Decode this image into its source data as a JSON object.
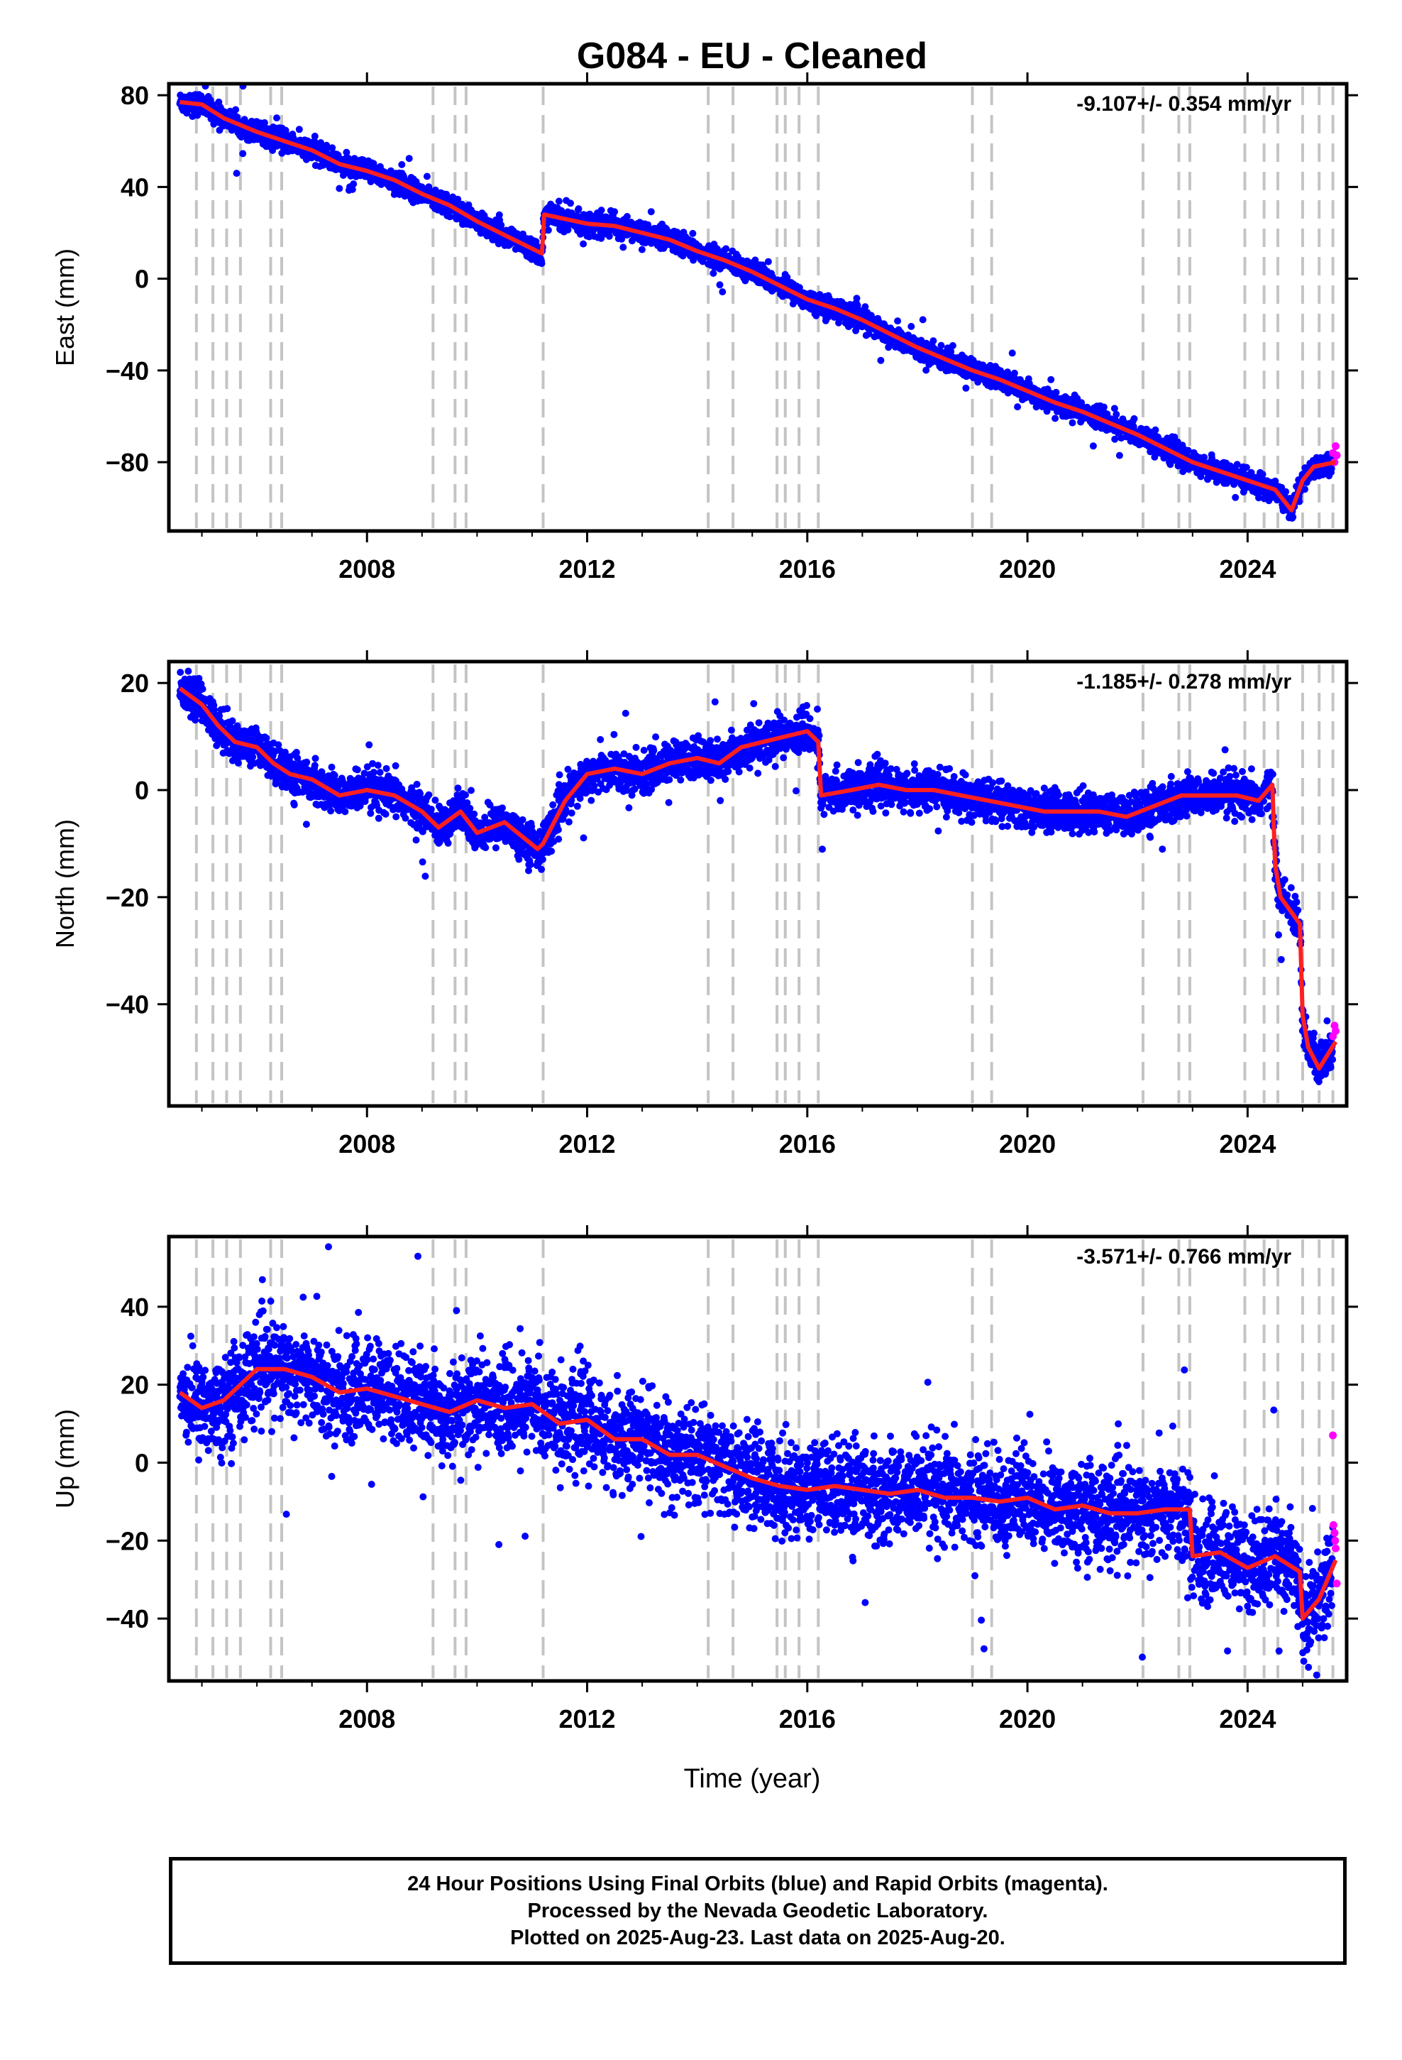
{
  "title": "G084  - EU - Cleaned",
  "xlabel": "Time (year)",
  "x_ticks": [
    "2008",
    "2012",
    "2016",
    "2020",
    "2024"
  ],
  "colors": {
    "final": "#0000ff",
    "rapid": "#ff00ff",
    "model": "#ff2020",
    "events": "#c4c4c4"
  },
  "event_years": [
    2004.9,
    2005.2,
    2005.45,
    2005.7,
    2006.25,
    2006.45,
    2009.2,
    2009.6,
    2009.8,
    2011.2,
    2014.2,
    2014.65,
    2015.45,
    2015.6,
    2015.85,
    2016.2,
    2019.0,
    2019.35,
    2022.1,
    2022.75,
    2022.95,
    2023.95,
    2024.3,
    2024.55,
    2025.0,
    2025.3,
    2025.55
  ],
  "footer": {
    "line1": "24 Hour Positions Using Final Orbits (blue) and Rapid Orbits (magenta).",
    "line2": "Processed by the Nevada Geodetic Laboratory.",
    "line3": "Plotted on 2025-Aug-23. Last data on 2025-Aug-20."
  },
  "chart_data": [
    {
      "type": "scatter",
      "ylabel": "East (mm)",
      "rate": "-9.107+/- 0.354 mm/yr",
      "xlim": [
        2004.4,
        2025.8
      ],
      "ylim": [
        -110,
        85
      ],
      "y_ticks": [
        "80",
        "40",
        "0",
        "−40",
        "−80"
      ],
      "y_tick_values": [
        80,
        40,
        0,
        -40,
        -80
      ],
      "noise": 2.2,
      "model_x": [
        2004.6,
        2005.0,
        2005.4,
        2006.0,
        2006.5,
        2007.0,
        2007.5,
        2008.0,
        2008.5,
        2009.0,
        2009.5,
        2010.0,
        2010.5,
        2011.18,
        2011.22,
        2012.0,
        2012.5,
        2013.0,
        2013.5,
        2014.0,
        2014.5,
        2015.0,
        2015.5,
        2016.0,
        2016.5,
        2017.0,
        2017.5,
        2018.0,
        2018.5,
        2019.0,
        2019.5,
        2020.0,
        2020.5,
        2021.0,
        2021.5,
        2022.0,
        2022.5,
        2023.0,
        2023.5,
        2024.0,
        2024.5,
        2024.8,
        2025.0,
        2025.2,
        2025.6
      ],
      "model_y": [
        77,
        76,
        70,
        64,
        60,
        56,
        50,
        47,
        43,
        37,
        32,
        25,
        19,
        11,
        28,
        24,
        23,
        20,
        17,
        12,
        8,
        3,
        -3,
        -9,
        -13,
        -18,
        -24,
        -30,
        -35,
        -40,
        -44,
        -49,
        -54,
        -58,
        -63,
        -68,
        -74,
        -80,
        -84,
        -88,
        -92,
        -101,
        -88,
        -82,
        -80
      ],
      "rapid_x": [
        2025.55,
        2025.58,
        2025.6,
        2025.62
      ],
      "rapid_y": [
        -76,
        -80,
        -73,
        -77
      ]
    },
    {
      "type": "scatter",
      "ylabel": "North (mm)",
      "rate": "-1.185+/- 0.278 mm/yr",
      "xlim": [
        2004.4,
        2025.8
      ],
      "ylim": [
        -59,
        24
      ],
      "y_ticks": [
        "20",
        "0",
        "−20",
        "−40"
      ],
      "y_tick_values": [
        20,
        0,
        -20,
        -40
      ],
      "noise": 1.8,
      "model_x": [
        2004.6,
        2005.0,
        2005.3,
        2005.6,
        2006.0,
        2006.3,
        2006.6,
        2007.0,
        2007.5,
        2008.0,
        2008.5,
        2009.0,
        2009.3,
        2009.7,
        2010.0,
        2010.5,
        2011.1,
        2011.2,
        2011.6,
        2012.0,
        2012.5,
        2013.0,
        2013.5,
        2014.0,
        2014.4,
        2014.8,
        2015.2,
        2015.6,
        2016.0,
        2016.2,
        2016.25,
        2016.8,
        2017.3,
        2017.8,
        2018.3,
        2018.8,
        2019.3,
        2019.8,
        2020.3,
        2020.8,
        2021.3,
        2021.8,
        2022.3,
        2022.8,
        2023.3,
        2023.8,
        2024.2,
        2024.45,
        2024.5,
        2024.6,
        2024.95,
        2025.0,
        2025.1,
        2025.3,
        2025.6
      ],
      "model_y": [
        19,
        16,
        12,
        9,
        8,
        5,
        3,
        2,
        -1,
        0,
        -1,
        -4,
        -7,
        -4,
        -8,
        -6,
        -11,
        -10,
        -2,
        3,
        4,
        3,
        5,
        6,
        5,
        8,
        9,
        10,
        11,
        9,
        -1,
        0,
        1,
        0,
        0,
        -1,
        -2,
        -3,
        -4,
        -4,
        -4,
        -5,
        -3,
        -1,
        -1,
        -1,
        -2,
        1,
        -14,
        -20,
        -25,
        -42,
        -48,
        -52,
        -47
      ],
      "rapid_x": [
        2025.55,
        2025.58,
        2025.6
      ],
      "rapid_y": [
        -46,
        -44,
        -45
      ]
    },
    {
      "type": "scatter",
      "ylabel": "Up (mm)",
      "rate": "-3.571+/- 0.766 mm/yr",
      "xlim": [
        2004.4,
        2025.8
      ],
      "ylim": [
        -56,
        58
      ],
      "y_ticks": [
        "40",
        "20",
        "0",
        "−20",
        "−40"
      ],
      "y_tick_values": [
        40,
        20,
        0,
        -20,
        -40
      ],
      "noise": 6.0,
      "model_x": [
        2004.6,
        2005.0,
        2005.4,
        2006.0,
        2006.5,
        2007.0,
        2007.5,
        2008.0,
        2008.5,
        2009.0,
        2009.5,
        2010.0,
        2010.5,
        2011.0,
        2011.5,
        2012.0,
        2012.5,
        2013.0,
        2013.5,
        2014.0,
        2014.5,
        2015.0,
        2015.5,
        2016.0,
        2016.5,
        2017.0,
        2017.5,
        2018.0,
        2018.5,
        2019.0,
        2019.5,
        2020.0,
        2020.5,
        2021.0,
        2021.5,
        2022.0,
        2022.5,
        2022.95,
        2023.0,
        2023.5,
        2024.0,
        2024.5,
        2024.95,
        2025.0,
        2025.3,
        2025.6
      ],
      "model_y": [
        18,
        14,
        16,
        24,
        24,
        22,
        18,
        19,
        17,
        15,
        13,
        16,
        14,
        15,
        10,
        11,
        6,
        6,
        2,
        2,
        -1,
        -4,
        -6,
        -7,
        -6,
        -7,
        -8,
        -7,
        -9,
        -9,
        -10,
        -9,
        -12,
        -11,
        -13,
        -13,
        -12,
        -12,
        -24,
        -23,
        -27,
        -24,
        -28,
        -40,
        -35,
        -25
      ],
      "rapid_x": [
        2025.55,
        2025.56,
        2025.58,
        2025.59,
        2025.6,
        2025.62
      ],
      "rapid_y": [
        7,
        -16,
        -18,
        -20,
        -22,
        -31
      ]
    }
  ]
}
